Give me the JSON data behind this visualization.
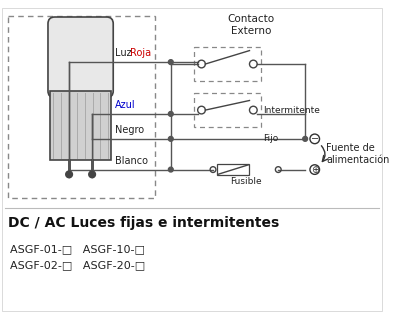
{
  "bg_color": "#ffffff",
  "title": "DC / AC Luces fijas e intermitentes",
  "model_line1": "ASGF-01-□   ASGF-10-□",
  "model_line2": "ASGF-02-□   ASGF-20-□",
  "label_luz": "Luz ",
  "label_roja": "Roja",
  "label_azul": "Azul",
  "label_negro": "Negro",
  "label_blanco": "Blanco",
  "label_intermitente": "Intermitente",
  "label_fijo": "Fijo",
  "label_fusible": "Fusible",
  "label_contacto": "Contacto\nExterno",
  "label_fuente": "Fuente de\nalimentación",
  "wire_color": "#555555",
  "dash_color": "#888888",
  "lamp_fill": "#e8e8e8",
  "lamp_edge": "#444444",
  "text_color": "#222222",
  "red_color": "#cc0000",
  "blue_color": "#0000cc"
}
